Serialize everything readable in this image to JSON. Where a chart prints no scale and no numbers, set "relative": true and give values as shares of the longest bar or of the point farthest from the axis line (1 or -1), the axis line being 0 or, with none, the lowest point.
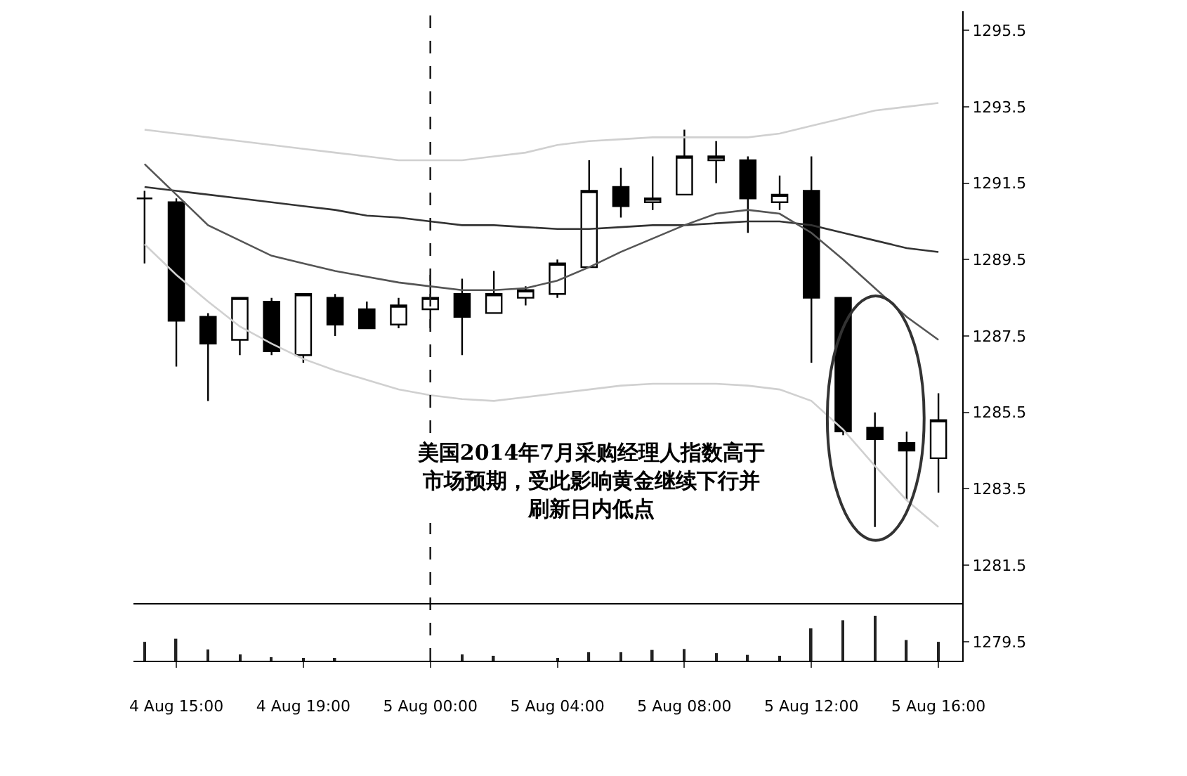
{
  "chart_data": [
    {
      "type": "candlestick",
      "categories": [
        null,
        "4 Aug 15:00",
        null,
        null,
        null,
        "4 Aug 19:00",
        null,
        null,
        null,
        "5 Aug 00:00",
        null,
        null,
        null,
        "5 Aug 04:00",
        null,
        null,
        null,
        "5 Aug 08:00",
        null,
        null,
        null,
        "5 Aug 12:00",
        null,
        null,
        null,
        "5 Aug 16:00"
      ],
      "ohlc": [
        [
          1291.1,
          1291.3,
          1289.4,
          1291.1
        ],
        [
          1291.0,
          1291.1,
          1286.7,
          1287.9
        ],
        [
          1288.0,
          1288.1,
          1285.8,
          1287.3
        ],
        [
          1287.4,
          1288.5,
          1287.0,
          1288.5
        ],
        [
          1288.4,
          1288.5,
          1287.0,
          1287.1
        ],
        [
          1287.0,
          1288.6,
          1286.8,
          1288.6
        ],
        [
          1288.5,
          1288.6,
          1287.5,
          1287.8
        ],
        [
          1288.2,
          1288.4,
          1287.7,
          1287.7
        ],
        [
          1287.8,
          1288.5,
          1287.7,
          1288.3
        ],
        [
          1288.2,
          1289.1,
          1287.7,
          1288.5
        ],
        [
          1288.6,
          1289.0,
          1287.0,
          1288.0
        ],
        [
          1288.1,
          1289.2,
          1288.1,
          1288.6
        ],
        [
          1288.5,
          1288.8,
          1288.3,
          1288.7
        ],
        [
          1288.6,
          1289.5,
          1288.5,
          1289.4
        ],
        [
          1289.3,
          1292.1,
          1289.3,
          1291.3
        ],
        [
          1291.4,
          1291.9,
          1290.6,
          1290.9
        ],
        [
          1291.0,
          1292.2,
          1290.8,
          1291.1
        ],
        [
          1291.2,
          1292.9,
          1291.2,
          1292.2
        ],
        [
          1292.1,
          1292.6,
          1291.5,
          1292.2
        ],
        [
          1292.1,
          1292.2,
          1290.2,
          1291.1
        ],
        [
          1291.0,
          1291.7,
          1290.8,
          1291.2
        ],
        [
          1291.3,
          1292.2,
          1286.8,
          1288.5
        ],
        [
          1288.5,
          1288.5,
          1284.9,
          1285.0
        ],
        [
          1285.1,
          1285.5,
          1282.5,
          1284.8
        ],
        [
          1284.7,
          1285.0,
          1283.2,
          1284.5
        ],
        [
          1284.3,
          1286.0,
          1283.4,
          1285.3
        ]
      ],
      "series": [
        {
          "type": "line",
          "color": "#d0d0d0",
          "values": [
            1292.9,
            1292.8,
            1292.7,
            1292.6,
            1292.5,
            1292.4,
            1292.3,
            1292.2,
            1292.1,
            1292.1,
            1292.1,
            1292.2,
            1292.3,
            1292.5,
            1292.6,
            1292.65,
            1292.7,
            1292.7,
            1292.7,
            1292.7,
            1292.8,
            1293.0,
            1293.2,
            1293.4,
            1293.5,
            1293.6
          ]
        },
        {
          "type": "line",
          "color": "#d0d0d0",
          "values": [
            1289.9,
            1289.1,
            1288.4,
            1287.75,
            1287.3,
            1286.9,
            1286.6,
            1286.35,
            1286.1,
            1285.95,
            1285.85,
            1285.8,
            1285.9,
            1286.0,
            1286.1,
            1286.2,
            1286.25,
            1286.25,
            1286.25,
            1286.2,
            1286.1,
            1285.8,
            1285.05,
            1284.1,
            1283.2,
            1282.5
          ]
        },
        {
          "type": "line",
          "color": "#333333",
          "values": [
            1291.4,
            1291.3,
            1291.2,
            1291.1,
            1291.0,
            1290.9,
            1290.8,
            1290.65,
            1290.6,
            1290.5,
            1290.4,
            1290.4,
            1290.35,
            1290.3,
            1290.3,
            1290.35,
            1290.4,
            1290.4,
            1290.45,
            1290.5,
            1290.5,
            1290.4,
            1290.2,
            1290.0,
            1289.8,
            1289.7
          ]
        },
        {
          "type": "line",
          "color": "#555555",
          "values": [
            1292.0,
            1291.2,
            1290.4,
            1290.0,
            1289.6,
            1289.4,
            1289.2,
            1289.05,
            1288.9,
            1288.8,
            1288.7,
            1288.7,
            1288.75,
            1288.95,
            1289.3,
            1289.7,
            1290.05,
            1290.4,
            1290.7,
            1290.8,
            1290.7,
            1290.2,
            1289.5,
            1288.75,
            1288.0,
            1287.4
          ]
        }
      ],
      "ylim": [
        1279.0,
        1296.0
      ],
      "yticks": [
        1279.5,
        1281.5,
        1283.5,
        1285.5,
        1287.5,
        1289.5,
        1291.5,
        1293.5,
        1295.5
      ],
      "tick_labels": "y",
      "ref_lines": [
        {
          "axis": "x",
          "value": "5 Aug 00:00",
          "line_style": "dashed",
          "color": "#222222"
        }
      ],
      "annotations": [
        "美国2014年7月采购经理人指数高于市场预期，受此影响黄金继续下行并刷新日内低点"
      ]
    },
    {
      "type": "bar",
      "relative": true,
      "color": "#222222",
      "tick_labels": "x",
      "categories": [
        null,
        "4 Aug 15:00",
        null,
        null,
        null,
        "4 Aug 19:00",
        null,
        null,
        null,
        "5 Aug 00:00",
        null,
        null,
        null,
        "5 Aug 04:00",
        null,
        null,
        null,
        "5 Aug 08:00",
        null,
        null,
        null,
        "5 Aug 12:00",
        null,
        null,
        null,
        "5 Aug 16:00"
      ],
      "values": [
        0.42,
        0.49,
        0.25,
        0.14,
        0.08,
        0.04,
        0.04,
        null,
        null,
        null,
        0.14,
        0.11,
        null,
        0.06,
        0.19,
        0.19,
        0.24,
        0.26,
        0.17,
        0.13,
        0.11,
        0.72,
        0.9,
        1,
        0.46,
        0.42
      ]
    }
  ]
}
